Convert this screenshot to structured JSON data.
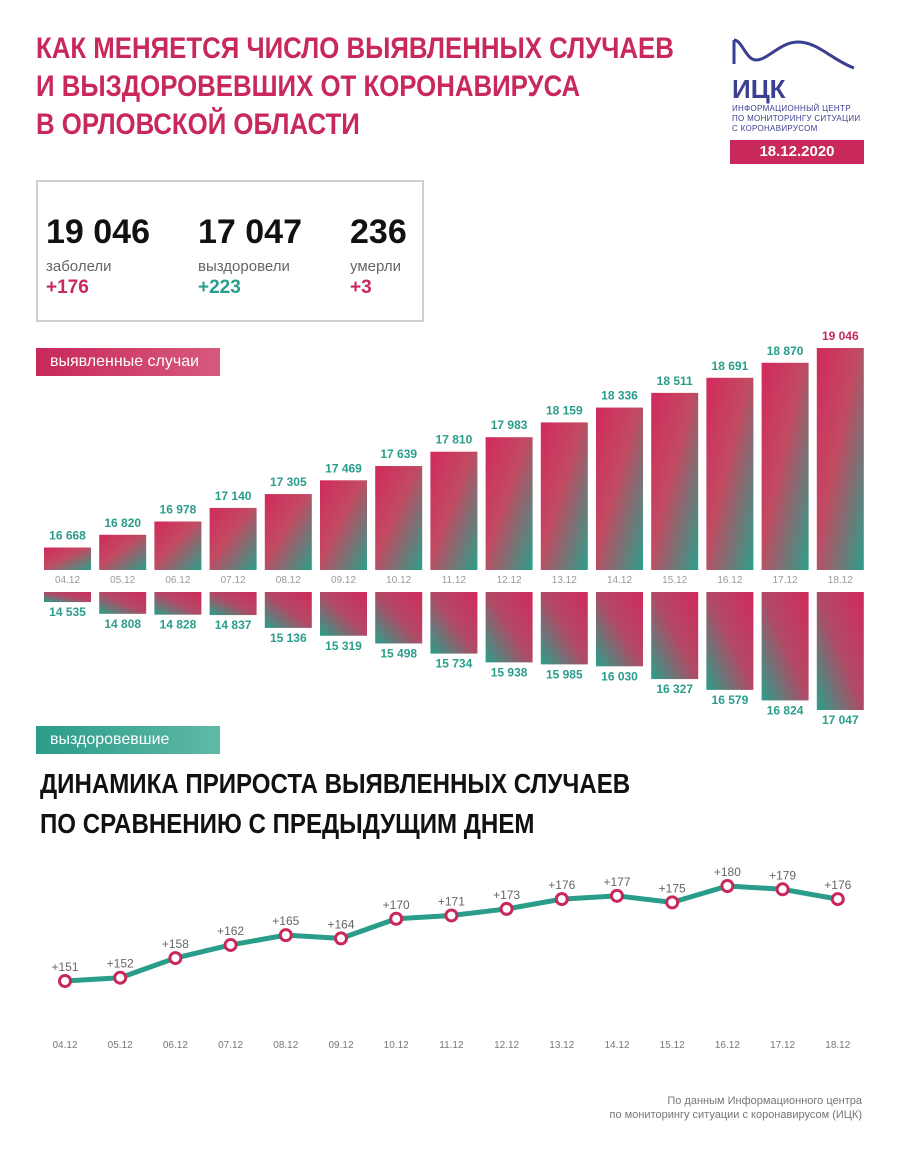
{
  "header": {
    "title_lines": [
      "КАК МЕНЯЕТСЯ ЧИСЛО ВЫЯВЛЕННЫХ СЛУЧАЕВ",
      "И ВЫЗДОРОВЕВШИХ ОТ КОРОНАВИРУСА",
      "В ОРЛОВСКОЙ ОБЛАСТИ"
    ],
    "logo_name": "ИЦК",
    "logo_text": [
      "ИНФОРМАЦИОННЫЙ ЦЕНТР",
      "ПО МОНИТОРИНГУ СИТУАЦИИ",
      "С КОРОНАВИРУСОМ"
    ],
    "date": "18.12.2020"
  },
  "stats": [
    {
      "value": "19 046",
      "label": "заболели",
      "delta": "+176",
      "color": "#c8285a"
    },
    {
      "value": "17 047",
      "label": "выздоровели",
      "delta": "+223",
      "color": "#2a9d8a"
    },
    {
      "value": "236",
      "label": "умерли",
      "delta": "+3",
      "color": "#c8285a"
    }
  ],
  "labels": {
    "cases_pill": "выявленные случаи",
    "recovered_pill": "выздоровевшие",
    "dynamics_title": [
      "ДИНАМИКА ПРИРОСТА ВЫЯВЛЕННЫХ СЛУЧАЕВ",
      "ПО СРАВНЕНИЮ С ПРЕДЫДУЩИМ ДНЕМ"
    ]
  },
  "colors": {
    "pink": "#c8285a",
    "teal": "#2a9d8a"
  },
  "chart_data": [
    {
      "type": "bar",
      "categories": [
        "04.12",
        "05.12",
        "06.12",
        "07.12",
        "08.12",
        "09.12",
        "10.12",
        "11.12",
        "12.12",
        "13.12",
        "14.12",
        "15.12",
        "16.12",
        "17.12",
        "18.12"
      ],
      "series": [
        {
          "name": "выявленные случаи",
          "values": [
            16668,
            16820,
            16978,
            17140,
            17305,
            17469,
            17639,
            17810,
            17983,
            18159,
            18336,
            18511,
            18691,
            18870,
            19046
          ],
          "labels": [
            "16 668",
            "16 820",
            "16 978",
            "17 140",
            "17 305",
            "17 469",
            "17 639",
            "17 810",
            "17 983",
            "18 159",
            "18 336",
            "18 511",
            "18 691",
            "18 870",
            "19 046"
          ]
        },
        {
          "name": "выздоровевшие",
          "values": [
            14535,
            14808,
            14828,
            14837,
            15136,
            15319,
            15498,
            15734,
            15938,
            15985,
            16030,
            16327,
            16579,
            16824,
            17047
          ],
          "labels": [
            "14 535",
            "14 808",
            "14 828",
            "14 837",
            "15 136",
            "15 319",
            "15 498",
            "15 734",
            "15 938",
            "15 985",
            "16 030",
            "16 327",
            "16 579",
            "16 824",
            "17 047"
          ]
        }
      ]
    },
    {
      "type": "line",
      "categories": [
        "04.12",
        "05.12",
        "06.12",
        "07.12",
        "08.12",
        "09.12",
        "10.12",
        "11.12",
        "12.12",
        "13.12",
        "14.12",
        "15.12",
        "16.12",
        "17.12",
        "18.12"
      ],
      "series": [
        {
          "values": [
            151,
            152,
            158,
            162,
            165,
            164,
            170,
            171,
            173,
            176,
            177,
            175,
            180,
            179,
            176
          ],
          "labels": [
            "+151",
            "+152",
            "+158",
            "+162",
            "+165",
            "+164",
            "+170",
            "+171",
            "+173",
            "+176",
            "+177",
            "+175",
            "+180",
            "+179",
            "+176"
          ]
        }
      ]
    }
  ],
  "footer": [
    "По данным Информационного центра",
    "по мониторингу ситуации с коронавирусом (ИЦК)"
  ]
}
